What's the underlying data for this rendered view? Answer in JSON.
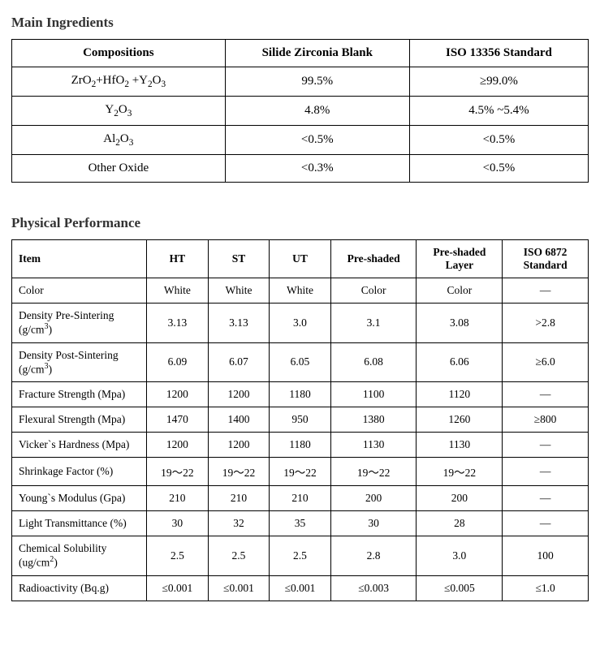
{
  "ingredients": {
    "title": "Main Ingredients",
    "columns": [
      "Compositions",
      "Silide Zirconia Blank",
      "ISO 13356 Standard"
    ],
    "rows": [
      {
        "comp_html": "ZrO<sub>2</sub>+HfO<sub>2</sub> +Y<sub>2</sub>O<sub>3</sub>",
        "silide": "99.5%",
        "iso": "≥99.0%"
      },
      {
        "comp_html": "Y<sub>2</sub>O<sub>3</sub>",
        "silide": "4.8%",
        "iso": "4.5% ~5.4%"
      },
      {
        "comp_html": "Al<sub>2</sub>O<sub>3</sub>",
        "silide": "<0.5%",
        "iso": "<0.5%"
      },
      {
        "comp_html": "Other Oxide",
        "silide": "<0.3%",
        "iso": "<0.5%"
      }
    ]
  },
  "performance": {
    "title": "Physical Performance",
    "columns": [
      "Item",
      "HT",
      "ST",
      "UT",
      "Pre-shaded",
      "Pre-shaded Layer",
      "ISO 6872 Standard"
    ],
    "rows": [
      {
        "item_html": "Color",
        "ht": "White",
        "st": "White",
        "ut": "White",
        "ps": "Color",
        "psl": "Color",
        "iso": "—"
      },
      {
        "item_html": "Density Pre-Sintering (g/cm<sup>3</sup>)",
        "ht": "3.13",
        "st": "3.13",
        "ut": "3.0",
        "ps": "3.1",
        "psl": "3.08",
        "iso": ">2.8"
      },
      {
        "item_html": "Density Post-Sintering (g/cm<sup>3</sup>)",
        "ht": "6.09",
        "st": "6.07",
        "ut": "6.05",
        "ps": "6.08",
        "psl": "6.06",
        "iso": "≥6.0"
      },
      {
        "item_html": "Fracture Strength (Mpa)",
        "ht": "1200",
        "st": "1200",
        "ut": "1180",
        "ps": "1100",
        "psl": "1120",
        "iso": "—"
      },
      {
        "item_html": "Flexural Strength (Mpa)",
        "ht": "1470",
        "st": "1400",
        "ut": "950",
        "ps": "1380",
        "psl": "1260",
        "iso": "≥800"
      },
      {
        "item_html": "Vicker`s Hardness (Mpa)",
        "ht": "1200",
        "st": "1200",
        "ut": "1180",
        "ps": "1130",
        "psl": "1130",
        "iso": "—"
      },
      {
        "item_html": "Shrinkage Factor (%)",
        "ht": "19～22",
        "st": "19～22",
        "ut": "19～22",
        "ps": "19～22",
        "psl": "19～22",
        "iso": "—"
      },
      {
        "item_html": "Young`s Modulus (Gpa)",
        "ht": "210",
        "st": "210",
        "ut": "210",
        "ps": "200",
        "psl": "200",
        "iso": "—"
      },
      {
        "item_html": "Light Transmittance (%)",
        "ht": "30",
        "st": "32",
        "ut": "35",
        "ps": "30",
        "psl": "28",
        "iso": "—"
      },
      {
        "item_html": "Chemical Solubility (ug/cm<sup>2</sup>)",
        "ht": "2.5",
        "st": "2.5",
        "ut": "2.5",
        "ps": "2.8",
        "psl": "3.0",
        "iso": "100"
      },
      {
        "item_html": "Radioactivity (Bq.g)",
        "ht": "≤0.001",
        "st": "≤0.001",
        "ut": "≤0.001",
        "ps": "≤0.003",
        "psl": "≤0.005",
        "iso": "≤1.0"
      }
    ]
  }
}
